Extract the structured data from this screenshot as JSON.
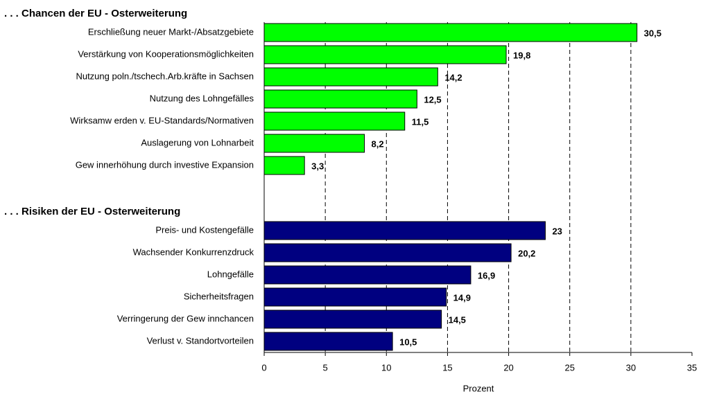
{
  "chart_data": {
    "type": "bar",
    "orientation": "horizontal",
    "groups": [
      {
        "name": ". . .  Chancen der EU - Osterweiterung",
        "color": "#00ff00",
        "categories": [
          "Erschließung neuer Markt-/Absatzgebiete",
          "Verstärkung von Kooperationsmöglichkeiten",
          "Nutzung poln./tschech.Arb.kräfte in Sachsen",
          "Nutzung des Lohngefälles",
          "Wirksamw erden v. EU-Standards/Normativen",
          "Auslagerung von Lohnarbeit",
          "Gew innerhöhung durch investive Expansion"
        ],
        "values": [
          30.5,
          19.8,
          14.2,
          12.5,
          11.5,
          8.2,
          3.3
        ],
        "value_labels": [
          "30,5",
          "19,8",
          "14,2",
          "12,5",
          "11,5",
          "8,2",
          "3,3"
        ]
      },
      {
        "name": ". . .  Risiken der EU - Osterweiterung",
        "color": "#000080",
        "categories": [
          "Preis- und Kostengefälle",
          "Wachsender Konkurrenzdruck",
          "Lohngefälle",
          "Sicherheitsfragen",
          "Verringerung der Gew innchancen",
          "Verlust v. Standortvorteilen"
        ],
        "values": [
          23,
          20.2,
          16.9,
          14.9,
          14.5,
          10.5
        ],
        "value_labels": [
          "23",
          "20,2",
          "16,9",
          "14,9",
          "14,5",
          "10,5"
        ]
      }
    ],
    "xlabel": "Prozent",
    "xlim": [
      0,
      35
    ],
    "xticks": [
      0,
      5,
      10,
      15,
      20,
      25,
      30,
      35
    ],
    "grid": true
  }
}
